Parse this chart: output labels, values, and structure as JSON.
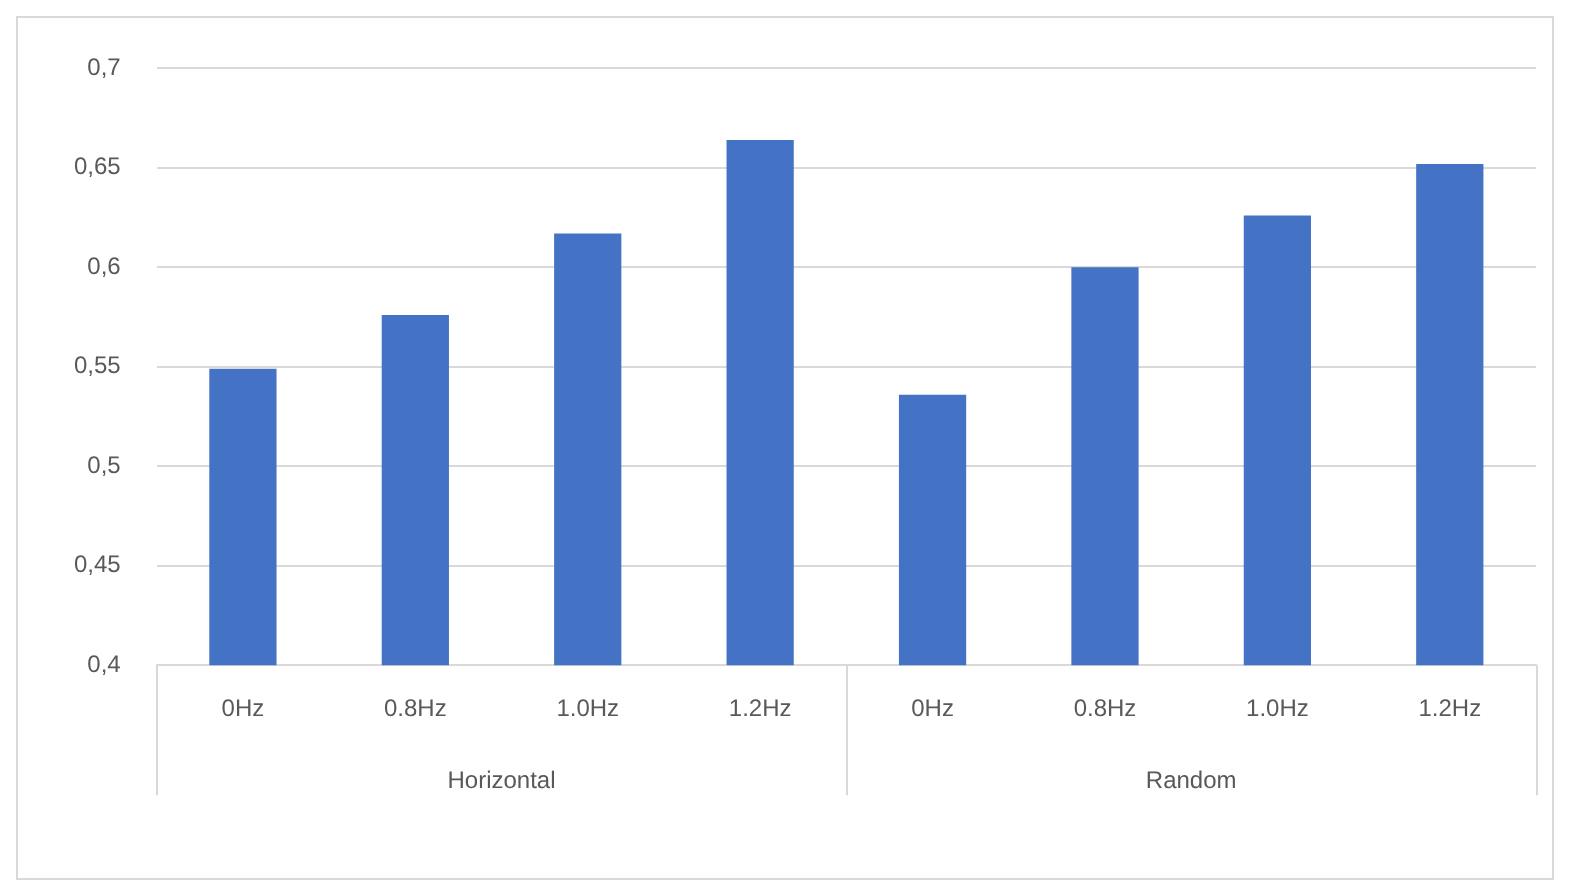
{
  "chart_data": {
    "type": "bar",
    "categories": [
      "0Hz",
      "0.8Hz",
      "1.0Hz",
      "1.2Hz",
      "0Hz",
      "0.8Hz",
      "1.0Hz",
      "1.2Hz"
    ],
    "values": [
      0.549,
      0.576,
      0.617,
      0.664,
      0.536,
      0.6,
      0.626,
      0.652
    ],
    "color": "#4472c4",
    "ylim": [
      0.4,
      0.7
    ],
    "yticks": [
      {
        "value": 0.4,
        "label": "0,4"
      },
      {
        "value": 0.45,
        "label": "0,45"
      },
      {
        "value": 0.5,
        "label": "0,5"
      },
      {
        "value": 0.55,
        "label": "0,55"
      },
      {
        "value": 0.6,
        "label": "0,6"
      },
      {
        "value": 0.65,
        "label": "0,65"
      },
      {
        "value": 0.7,
        "label": "0,7"
      }
    ],
    "grid": "y",
    "annotations": [
      "Horizontal",
      "Random"
    ]
  }
}
